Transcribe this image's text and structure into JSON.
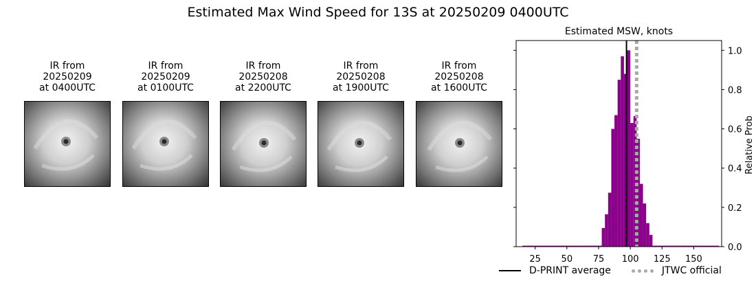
{
  "title": "Estimated Max Wind Speed for 13S at 20250209 0400UTC",
  "ir_panels": [
    {
      "caption": "IR from\n20250209\nat 0400UTC"
    },
    {
      "caption": "IR from\n20250209\nat 0100UTC"
    },
    {
      "caption": "IR from\n20250208\nat 2200UTC"
    },
    {
      "caption": "IR from\n20250208\nat 1900UTC"
    },
    {
      "caption": "IR from\n20250208\nat 1600UTC"
    }
  ],
  "chart_data": {
    "type": "bar",
    "title": "Estimated MSW, knots",
    "xlabel": "",
    "ylabel": "Relative Prob",
    "xlim": [
      10,
      172
    ],
    "ylim": [
      0,
      1.05
    ],
    "x_ticks": [
      25,
      50,
      75,
      100,
      125,
      150
    ],
    "y_ticks": [
      0.0,
      0.2,
      0.4,
      0.6,
      0.8,
      1.0
    ],
    "y_tick_labels": [
      "0.0",
      "0.2",
      "0.4",
      "0.6",
      "0.8",
      "1.0"
    ],
    "bin_width": 2.5,
    "bars_x": [
      15,
      17.5,
      20,
      22.5,
      25,
      27.5,
      30,
      32.5,
      35,
      37.5,
      40,
      42.5,
      45,
      47.5,
      50,
      52.5,
      55,
      57.5,
      60,
      62.5,
      65,
      67.5,
      70,
      72.5,
      75,
      77.5,
      80,
      82.5,
      85,
      87.5,
      90,
      92.5,
      95,
      97.5,
      100,
      102.5,
      105,
      107.5,
      110,
      112.5,
      115,
      117.5,
      120,
      122.5,
      125,
      127.5,
      130,
      132.5,
      135,
      137.5,
      140,
      142.5,
      145,
      147.5,
      150,
      152.5,
      155,
      157.5,
      160,
      162.5,
      165,
      167.5
    ],
    "bars_y": [
      0.005,
      0.005,
      0.005,
      0.005,
      0.005,
      0.005,
      0.005,
      0.005,
      0.005,
      0.005,
      0.005,
      0.005,
      0.005,
      0.005,
      0.005,
      0.005,
      0.005,
      0.005,
      0.005,
      0.005,
      0.005,
      0.005,
      0.005,
      0.005,
      0.005,
      0.095,
      0.165,
      0.275,
      0.6,
      0.67,
      0.85,
      0.97,
      0.88,
      1.0,
      0.63,
      0.665,
      0.55,
      0.32,
      0.22,
      0.12,
      0.06,
      0.005,
      0.005,
      0.005,
      0.005,
      0.005,
      0.005,
      0.005,
      0.005,
      0.005,
      0.005,
      0.005,
      0.005,
      0.005,
      0.005,
      0.005,
      0.005,
      0.005,
      0.005,
      0.005,
      0.005,
      0.005
    ],
    "bar_color": "#8b008b",
    "dprint_average": 97,
    "jtwc_official": 105,
    "legend": [
      {
        "label": "D-PRINT average",
        "color": "#000000"
      },
      {
        "label": "JTWC official",
        "color": "#a9a9a9"
      }
    ],
    "legend_placement": "bottom",
    "grid": false
  }
}
